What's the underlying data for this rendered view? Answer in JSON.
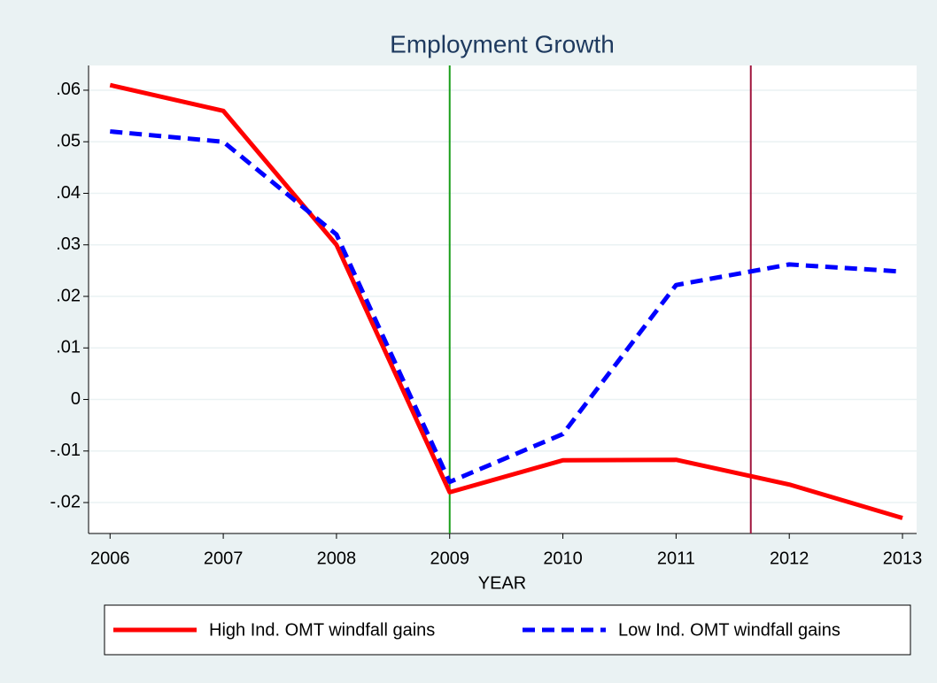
{
  "chart_data": {
    "type": "line",
    "title": "Employment Growth",
    "x_label": "YEAR",
    "x": [
      2006,
      2007,
      2008,
      2009,
      2010,
      2011,
      2012,
      2013
    ],
    "series": [
      {
        "name": "High Ind. OMT windfall gains",
        "color": "#ff0000",
        "style": "solid",
        "values": [
          0.061,
          0.056,
          0.03,
          -0.018,
          -0.0118,
          -0.0117,
          -0.0165,
          -0.023
        ]
      },
      {
        "name": "Low Ind. OMT windfall gains",
        "color": "#0000ff",
        "style": "dashed",
        "values": [
          0.052,
          0.05,
          0.032,
          -0.016,
          -0.0067,
          0.0222,
          0.0262,
          0.0248
        ]
      }
    ],
    "vlines": [
      {
        "value": 2009,
        "color": "#1a9e1a"
      },
      {
        "value": 2011.66,
        "color": "#a0143c"
      }
    ],
    "xlim": [
      2005.81,
      2013.125
    ],
    "xticks": [
      2006,
      2007,
      2008,
      2009,
      2010,
      2011,
      2012,
      2013
    ],
    "ylim": [
      -0.026,
      0.0648
    ],
    "yticks": [
      {
        "value": -0.02,
        "label": "-.02"
      },
      {
        "value": -0.01,
        "label": "-.01"
      },
      0,
      {
        "value": 0.01,
        "label": ".01"
      },
      {
        "value": 0.02,
        "label": ".02"
      },
      {
        "value": 0.03,
        "label": ".03"
      },
      {
        "value": 0.04,
        "label": ".04"
      },
      {
        "value": 0.05,
        "label": ".05"
      },
      {
        "value": 0.06,
        "label": ".06"
      }
    ],
    "grid": true,
    "legend_position": "bottom"
  }
}
